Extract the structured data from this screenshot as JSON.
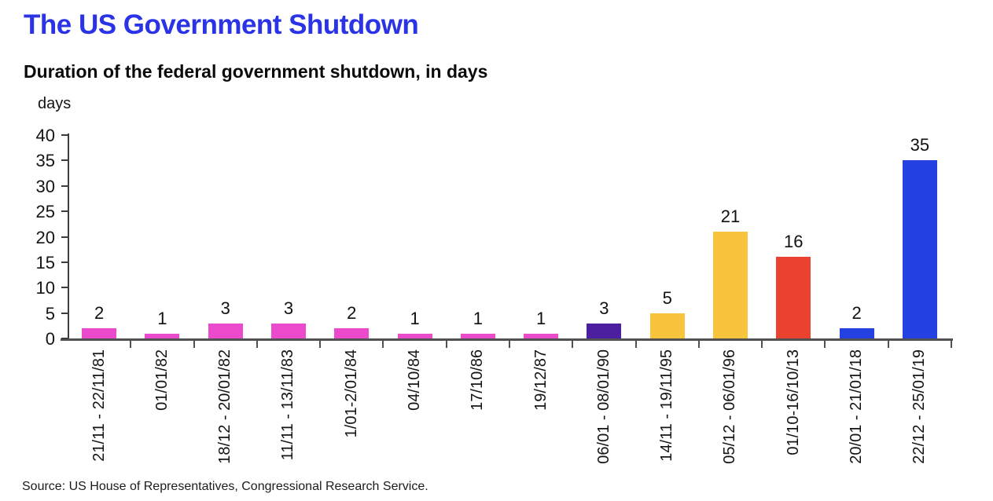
{
  "header": {
    "title": "The US Government Shutdown",
    "subtitle": "Duration of the federal government shutdown, in days"
  },
  "chart_data": {
    "type": "bar",
    "title": "The US Government Shutdown",
    "subtitle": "Duration of the federal government shutdown, in days",
    "unit_label": "days",
    "xlabel": "",
    "ylabel": "days",
    "ylim": [
      0,
      40
    ],
    "yticks": [
      0,
      5,
      10,
      15,
      20,
      25,
      30,
      35,
      40
    ],
    "grid": false,
    "legend": "none",
    "value_labels_shown": true,
    "categories": [
      "21/11 - 22/11/81",
      "01/01/82",
      "18/12 - 20/01/82",
      "11/11 - 13/11/83",
      "1/01-2/01/84",
      "04/10/84",
      "17/10/86",
      "19/12/87",
      "06/01 - 08/01/90",
      "14/11 - 19/11/95",
      "05/12 - 06/01/96",
      "01/10-16/10/13",
      "20/01 - 21/01/18",
      "22/12 - 25/01/19"
    ],
    "values": [
      2,
      1,
      3,
      3,
      2,
      1,
      1,
      1,
      3,
      5,
      21,
      16,
      2,
      35
    ],
    "colors": [
      "#ec4acc",
      "#ec4acc",
      "#ec4acc",
      "#ec4acc",
      "#ec4acc",
      "#ec4acc",
      "#ec4acc",
      "#ec4acc",
      "#4b1f9f",
      "#f8c43c",
      "#f8c43c",
      "#e9432f",
      "#2442e1",
      "#2442e1"
    ],
    "palette_legend": {
      "pink": "#ec4acc",
      "purple": "#4b1f9f",
      "yellow": "#f8c43c",
      "red": "#e9432f",
      "blue": "#2442e1"
    },
    "axis_color": "#3d3d3d",
    "title_color": "#2a33e6"
  },
  "footer": {
    "source": "Source: US House of Representatives, Congressional Research Service."
  }
}
